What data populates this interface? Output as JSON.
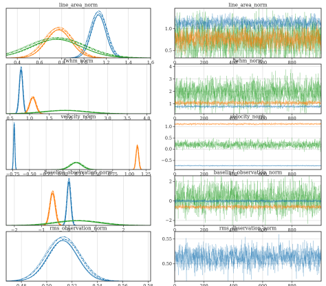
{
  "figure": {
    "colors": {
      "blue": "#1f77b4",
      "orange": "#ff7f0e",
      "green": "#2ca02c"
    }
  },
  "chart_data": [
    {
      "type": "line",
      "subtype": "density",
      "title": "line_area_norm",
      "xlim": [
        0.3,
        1.6
      ],
      "ylim": [
        0,
        1.05
      ],
      "xticks": [
        0.4,
        0.6,
        0.8,
        1.0,
        1.2,
        1.4,
        1.6
      ],
      "xtick_labels": [
        "0.4",
        "0.6",
        "0.8",
        "1.0",
        "1.2",
        "1.4",
        "1.6"
      ],
      "grid": true,
      "series": [
        {
          "color": "blue",
          "mean": 1.13,
          "sd": 0.07,
          "peak": 0.95
        },
        {
          "color": "orange",
          "mean": 0.77,
          "sd": 0.12,
          "peak": 0.62
        },
        {
          "color": "green",
          "mean": 0.75,
          "sd": 0.24,
          "peak": 0.41
        }
      ]
    },
    {
      "type": "line",
      "subtype": "trace",
      "title": "line_area_norm",
      "xlim": [
        0,
        999
      ],
      "ylim": [
        0.33,
        1.47
      ],
      "xticks": [
        0,
        200,
        400,
        600,
        800
      ],
      "xtick_labels": [
        "0",
        "200",
        "400",
        "600",
        "800"
      ],
      "yticks": [
        0.5,
        1.0
      ],
      "ytick_labels": [
        "0.5",
        "1.0"
      ],
      "grid": true,
      "series": [
        {
          "color": "blue",
          "mean": 1.13,
          "sd": 0.07
        },
        {
          "color": "orange",
          "mean": 0.77,
          "sd": 0.12
        },
        {
          "color": "green",
          "mean": 0.75,
          "sd": 0.24
        }
      ]
    },
    {
      "type": "line",
      "subtype": "density",
      "title": "fwhm_norm",
      "xlim": [
        0.4,
        4.1
      ],
      "ylim": [
        0,
        1.05
      ],
      "xticks": [
        0.5,
        1.0,
        1.5,
        2.0,
        2.5,
        3.0,
        3.5,
        4.0
      ],
      "xtick_labels": [
        "0.5",
        "1.0",
        "1.5",
        "2.0",
        "2.5",
        "3.0",
        "3.5",
        "4.0"
      ],
      "grid": true,
      "series": [
        {
          "color": "blue",
          "mean": 0.78,
          "sd": 0.045,
          "peak": 0.95
        },
        {
          "color": "orange",
          "mean": 1.08,
          "sd": 0.08,
          "peak": 0.35
        },
        {
          "color": "green",
          "mean": 1.9,
          "sd": 0.55,
          "peak": 0.07
        }
      ]
    },
    {
      "type": "line",
      "subtype": "trace",
      "title": "fwhm_norm",
      "xlim": [
        0,
        999
      ],
      "ylim": [
        0.2,
        4.2
      ],
      "xticks": [
        0,
        200,
        400,
        600,
        800
      ],
      "xtick_labels": [
        "0",
        "200",
        "400",
        "600",
        "800"
      ],
      "yticks": [
        1,
        2,
        3,
        4
      ],
      "ytick_labels": [
        "1",
        "2",
        "3",
        "4"
      ],
      "grid": true,
      "series": [
        {
          "color": "blue",
          "mean": 0.78,
          "sd": 0.045
        },
        {
          "color": "orange",
          "mean": 1.08,
          "sd": 0.08
        },
        {
          "color": "green",
          "mean": 1.9,
          "sd": 0.55
        }
      ]
    },
    {
      "type": "line",
      "subtype": "density",
      "title": "velocity_norm",
      "xlim": [
        -0.85,
        1.32
      ],
      "ylim": [
        0,
        1.05
      ],
      "xticks": [
        -0.75,
        -0.5,
        -0.25,
        0.0,
        0.25,
        0.5,
        0.75,
        1.0,
        1.25
      ],
      "xtick_labels": [
        "−0.75",
        "−0.50",
        "−0.25",
        "0.00",
        "0.25",
        "0.50",
        "0.75",
        "1.00",
        "1.25"
      ],
      "grid": true,
      "series": [
        {
          "color": "blue",
          "mean": -0.73,
          "sd": 0.01,
          "peak": 0.95
        },
        {
          "color": "orange",
          "mean": 1.12,
          "sd": 0.02,
          "peak": 0.5
        },
        {
          "color": "green",
          "mean": 0.2,
          "sd": 0.09,
          "peak": 0.15
        }
      ]
    },
    {
      "type": "line",
      "subtype": "trace",
      "title": "velocity_norm",
      "xlim": [
        0,
        999
      ],
      "ylim": [
        -0.9,
        1.3
      ],
      "xticks": [
        0,
        200,
        400,
        600,
        800
      ],
      "xtick_labels": [
        "0",
        "200",
        "400",
        "600",
        "800"
      ],
      "yticks": [
        -0.5,
        0.0,
        0.5,
        1.0
      ],
      "ytick_labels": [
        "−0.5",
        "0.0",
        "0.5",
        "1.0"
      ],
      "grid": true,
      "series": [
        {
          "color": "blue",
          "mean": -0.73,
          "sd": 0.01
        },
        {
          "color": "orange",
          "mean": 1.12,
          "sd": 0.02
        },
        {
          "color": "green",
          "mean": 0.2,
          "sd": 0.09
        }
      ]
    },
    {
      "type": "line",
      "subtype": "density",
      "title": "baseline_observation_norm",
      "xlim": [
        -2.3,
        3.0
      ],
      "ylim": [
        0,
        1.05
      ],
      "xticks": [
        -2,
        -1,
        0,
        1,
        2
      ],
      "xtick_labels": [
        "−2",
        "−1",
        "0",
        "1",
        "2"
      ],
      "grid": true,
      "series": [
        {
          "color": "blue",
          "mean": 0.0,
          "sd": 0.07,
          "peak": 0.95
        },
        {
          "color": "orange",
          "mean": -0.6,
          "sd": 0.1,
          "peak": 0.7
        },
        {
          "color": "green",
          "mean": 0.3,
          "sd": 0.8,
          "peak": 0.1
        }
      ]
    },
    {
      "type": "line",
      "subtype": "trace",
      "title": "baseline_observation_norm",
      "xlim": [
        0,
        999
      ],
      "ylim": [
        -2.5,
        2.6
      ],
      "xticks": [
        0,
        200,
        400,
        600,
        800
      ],
      "xtick_labels": [
        "0",
        "200",
        "400",
        "600",
        "800"
      ],
      "yticks": [
        -2,
        0,
        2
      ],
      "ytick_labels": [
        "−2",
        "0",
        "2"
      ],
      "grid": true,
      "series": [
        {
          "color": "blue",
          "mean": 0.0,
          "sd": 0.07
        },
        {
          "color": "orange",
          "mean": -0.6,
          "sd": 0.1
        },
        {
          "color": "green",
          "mean": 0.3,
          "sd": 0.8
        }
      ]
    },
    {
      "type": "line",
      "subtype": "density",
      "title": "rms_observation_norm",
      "xlim": [
        0.468,
        0.582
      ],
      "ylim": [
        0,
        1.05
      ],
      "xticks": [
        0.48,
        0.5,
        0.52,
        0.54,
        0.56,
        0.58
      ],
      "xtick_labels": [
        "0.48",
        "0.50",
        "0.52",
        "0.54",
        "0.56",
        "0.58"
      ],
      "grid": true,
      "series": [
        {
          "color": "blue",
          "mean": 0.5125,
          "sd": 0.0125,
          "peak": 0.9
        }
      ]
    },
    {
      "type": "line",
      "subtype": "trace",
      "title": "rms_observation_norm",
      "xlim": [
        0,
        999
      ],
      "ylim": [
        0.465,
        0.565
      ],
      "xticks": [
        0,
        200,
        400,
        600,
        800
      ],
      "xtick_labels": [
        "0",
        "200",
        "400",
        "600",
        "800"
      ],
      "yticks": [
        0.5,
        0.55
      ],
      "ytick_labels": [
        "0.50",
        "0.55"
      ],
      "grid": true,
      "series": [
        {
          "color": "blue",
          "mean": 0.5125,
          "sd": 0.0125
        }
      ]
    }
  ]
}
